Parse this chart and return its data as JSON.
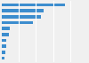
{
  "values": [
    68.35,
    45.0,
    42.26,
    34.1,
    8.4,
    7.3,
    5.0,
    4.6,
    3.8,
    3.2
  ],
  "bar_color": "#3c8dce",
  "background_color": "#f0f0f0",
  "grid_color": "#ffffff",
  "figsize": [
    1.0,
    0.71
  ],
  "dpi": 100
}
